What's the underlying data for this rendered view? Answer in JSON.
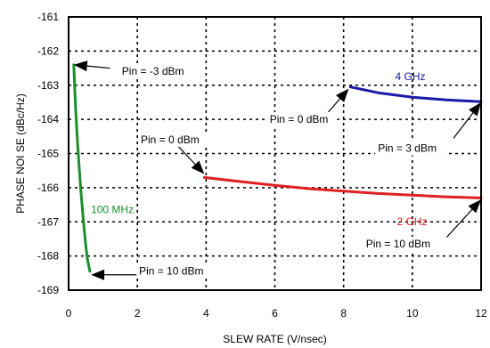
{
  "chart_data": {
    "type": "line",
    "title": "",
    "xlabel": "SLEW RATE (V/nsec)",
    "ylabel": "PHASE NOI SE (dBc/Hz)",
    "xlim": [
      0,
      12
    ],
    "ylim": [
      -169,
      -161
    ],
    "x_ticks": [
      0,
      2,
      4,
      6,
      8,
      10,
      12
    ],
    "y_ticks": [
      -161,
      -162,
      -163,
      -164,
      -165,
      -166,
      -167,
      -168,
      -169
    ],
    "grid": true,
    "series": [
      {
        "name": "100 MHz",
        "color": "#1a8f2a",
        "points": [
          [
            0.15,
            -162.4
          ],
          [
            0.2,
            -163.6
          ],
          [
            0.25,
            -164.5
          ],
          [
            0.3,
            -165.3
          ],
          [
            0.35,
            -166.0
          ],
          [
            0.4,
            -166.6
          ],
          [
            0.45,
            -167.2
          ],
          [
            0.5,
            -167.7
          ],
          [
            0.55,
            -168.1
          ],
          [
            0.62,
            -168.45
          ]
        ]
      },
      {
        "name": "2 GHz",
        "color": "#e02020",
        "points": [
          [
            3.95,
            -165.7
          ],
          [
            5,
            -165.82
          ],
          [
            6,
            -165.93
          ],
          [
            7,
            -166.03
          ],
          [
            8,
            -166.1
          ],
          [
            9,
            -166.17
          ],
          [
            10,
            -166.22
          ],
          [
            11,
            -166.27
          ],
          [
            12,
            -166.3
          ]
        ]
      },
      {
        "name": "4 GHz",
        "color": "#1a1aa8",
        "points": [
          [
            8.2,
            -163.05
          ],
          [
            9,
            -163.22
          ],
          [
            10,
            -163.35
          ],
          [
            11,
            -163.43
          ],
          [
            12,
            -163.48
          ]
        ]
      }
    ],
    "annotations": [
      {
        "text": "Pin = -3 dBm",
        "x": 1.55,
        "y": -162.7,
        "arrow_from": [
          1.2,
          -162.5
        ],
        "arrow_to": [
          0.15,
          -162.4
        ]
      },
      {
        "text": "Pin = 10 dBm",
        "x": 2.05,
        "y": -168.55,
        "arrow_from": [
          2.0,
          -168.55
        ],
        "arrow_to": [
          0.65,
          -168.55
        ]
      },
      {
        "text": "Pin = 0 dBm",
        "x": 2.1,
        "y": -164.7,
        "arrow_from": [
          3.2,
          -164.8
        ],
        "arrow_to": [
          3.95,
          -165.6
        ]
      },
      {
        "text": "Pin = 0 dBm",
        "x": 5.85,
        "y": -164.1,
        "arrow_from": [
          7.5,
          -163.85
        ],
        "arrow_to": [
          8.15,
          -163.1
        ]
      },
      {
        "text": "Pin = 3 dBm",
        "x": 9.0,
        "y": -164.95,
        "arrow_from": [
          11.2,
          -164.55
        ],
        "arrow_to": [
          12.0,
          -163.5
        ]
      },
      {
        "text": "Pin = 10 dBm",
        "x": 8.65,
        "y": -167.75,
        "arrow_from": [
          11.0,
          -167.45
        ],
        "arrow_to": [
          12.0,
          -166.35
        ]
      },
      {
        "text": "100 MHz",
        "x": 0.65,
        "y": -166.75
      },
      {
        "text": "2 GHz",
        "x": 9.55,
        "y": -167.1
      },
      {
        "text": "4 GHz",
        "x": 9.5,
        "y": -162.85
      }
    ]
  }
}
